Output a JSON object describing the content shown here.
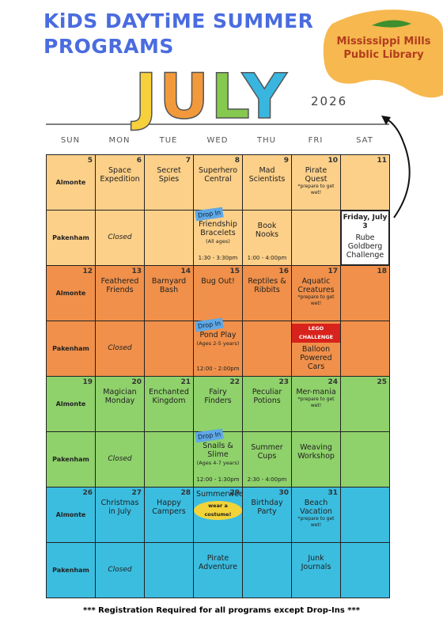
{
  "header": {
    "title_line1": "KiDS DAYTiME SUMMER",
    "title_line2": "PROGRAMS",
    "month": "JULY",
    "year": "2026",
    "library": "Mississippi Mills Public Library"
  },
  "days": [
    "SUN",
    "MON",
    "TUE",
    "WED",
    "THU",
    "FRI",
    "SAT"
  ],
  "locations": [
    "Almonte",
    "Pakenham"
  ],
  "weeks": [
    {
      "dates": [
        5,
        6,
        7,
        8,
        9,
        10,
        11
      ],
      "almonte": [
        null,
        {
          "title": "Space Expedition"
        },
        {
          "title": "Secret Spies"
        },
        {
          "title": "Superhero Central"
        },
        {
          "title": "Mad Scientists"
        },
        {
          "title": "Pirate Quest",
          "note": "*prepare to get wet!"
        },
        null
      ],
      "pakenham": [
        null,
        {
          "title": "Closed"
        },
        null,
        {
          "tag": "Drop In",
          "title": "Friendship Bracelets",
          "detail": "(All ages)",
          "time": "1:30 - 3:30pm"
        },
        {
          "title": "Book Nooks",
          "time": "1:00 - 4:00pm"
        },
        null,
        {
          "date_note": "Friday, July 3",
          "title": "Rube Goldberg Challenge"
        }
      ]
    },
    {
      "dates": [
        12,
        13,
        14,
        15,
        16,
        17,
        18
      ],
      "almonte": [
        null,
        {
          "title": "Feathered Friends"
        },
        {
          "title": "Barnyard Bash"
        },
        {
          "title": "Bug Out!"
        },
        {
          "title": "Reptiles & Ribbits"
        },
        {
          "title": "Aquatic Creatures",
          "note": "*prepare to get wet!"
        },
        null
      ],
      "pakenham": [
        null,
        {
          "title": "Closed"
        },
        null,
        {
          "tag": "Drop In",
          "title": "Pond Play",
          "detail": "(Ages 2-5 years)",
          "time": "12:00 - 2:00pm"
        },
        null,
        {
          "badge": "LEGO CHALLENGE",
          "title": "Balloon Powered Cars"
        },
        null
      ]
    },
    {
      "dates": [
        19,
        20,
        21,
        22,
        23,
        24,
        25
      ],
      "almonte": [
        null,
        {
          "title": "Magician Monday"
        },
        {
          "title": "Enchanted Kingdom"
        },
        {
          "title": "Fairy Finders"
        },
        {
          "title": "Peculiar Potions"
        },
        {
          "title": "Mer-mania",
          "note": "*prepare to get wet!"
        },
        null
      ],
      "pakenham": [
        null,
        {
          "title": "Closed"
        },
        null,
        {
          "tag": "Drop In",
          "title": "Snails & Slime",
          "detail": "(Ages 4-7 years)",
          "time": "12:00 - 1:30pm"
        },
        {
          "title": "Summer Cups",
          "time": "2:30 - 4:00pm"
        },
        {
          "title": "Weaving Workshop"
        },
        null
      ]
    },
    {
      "dates": [
        26,
        27,
        28,
        29,
        30,
        31,
        null
      ],
      "almonte": [
        null,
        {
          "title": "Christmas in July"
        },
        {
          "title": "Happy Campers"
        },
        {
          "title": "Summerween",
          "badge": "wear a costume!"
        },
        {
          "title": "Birthday Party"
        },
        {
          "title": "Beach Vacation",
          "note": "*prepare to get wet!"
        },
        null
      ],
      "pakenham": [
        null,
        {
          "title": "Closed"
        },
        null,
        {
          "title": "Pirate Adventure"
        },
        null,
        {
          "title": "Junk Journals"
        },
        null
      ]
    }
  ],
  "footer": "*** Registration Required for all programs except Drop-Ins ***"
}
